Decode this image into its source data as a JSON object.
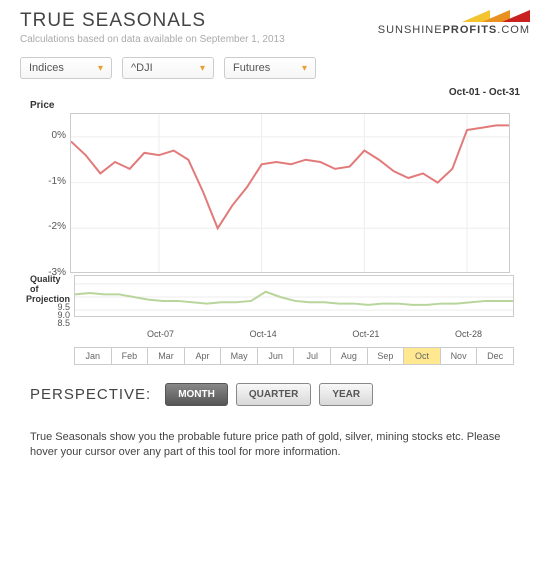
{
  "header": {
    "title": "TRUE SEASONALS",
    "subtitle": "Calculations based on data available on September 1, 2013",
    "logo_text": "SUNSHINE",
    "logo_bold": "PROFITS",
    "logo_suffix": ".COM",
    "logo_colors": [
      "#f4c430",
      "#e89020",
      "#c92020"
    ]
  },
  "selectors": [
    {
      "label": "Indices"
    },
    {
      "label": "^DJI"
    },
    {
      "label": "Futures"
    }
  ],
  "date_range": "Oct-01 - Oct-31",
  "price_chart": {
    "type": "line",
    "ylabel": "Price",
    "ylim": [
      -3,
      0.5
    ],
    "yticks": [
      0,
      -1,
      -2,
      -3
    ],
    "ytick_labels": [
      "0%",
      "-1%",
      "-2%",
      "-3%"
    ],
    "line_color": "#e27a7a",
    "line_width": 2,
    "grid_color": "#eeeeee",
    "border_color": "#cccccc",
    "background_color": "#ffffff",
    "x_count": 31,
    "values": [
      -0.1,
      -0.4,
      -0.8,
      -0.55,
      -0.7,
      -0.35,
      -0.4,
      -0.3,
      -0.5,
      -1.2,
      -2.0,
      -1.5,
      -1.1,
      -0.6,
      -0.55,
      -0.6,
      -0.5,
      -0.55,
      -0.7,
      -0.65,
      -0.3,
      -0.5,
      -0.75,
      -0.9,
      -0.8,
      -1.0,
      -0.7,
      0.15,
      0.2,
      0.25,
      0.25
    ]
  },
  "qop_chart": {
    "type": "line",
    "ylabel_line1": "Quality of",
    "ylabel_line2": "Projection",
    "ylim": [
      8.2,
      9.8
    ],
    "yticks": [
      9.5,
      9.0,
      8.5
    ],
    "ytick_labels": [
      "9.5",
      "9.0",
      "8.5"
    ],
    "line_color": "#b8d69c",
    "line_width": 2,
    "grid_color": "#eeeeee",
    "border_color": "#cccccc",
    "x_count": 31,
    "values": [
      9.1,
      9.15,
      9.1,
      9.1,
      9.0,
      8.9,
      8.85,
      8.85,
      8.8,
      8.75,
      8.8,
      8.8,
      8.85,
      9.2,
      9.0,
      8.85,
      8.8,
      8.8,
      8.75,
      8.75,
      8.7,
      8.75,
      8.75,
      8.7,
      8.7,
      8.75,
      8.75,
      8.8,
      8.85,
      8.85,
      8.85
    ]
  },
  "xaxis": {
    "ticks": [
      "Oct-07",
      "Oct-14",
      "Oct-21",
      "Oct-28"
    ],
    "tick_positions": [
      7,
      14,
      21,
      28
    ]
  },
  "months": {
    "labels": [
      "Jan",
      "Feb",
      "Mar",
      "Apr",
      "May",
      "Jun",
      "Jul",
      "Aug",
      "Sep",
      "Oct",
      "Nov",
      "Dec"
    ],
    "selected_index": 9,
    "selected_bg": "#ffe890"
  },
  "perspective": {
    "label": "PERSPECTIVE:",
    "buttons": [
      "MONTH",
      "QUARTER",
      "YEAR"
    ],
    "active_index": 0
  },
  "description": "True Seasonals show you the probable future price path of gold, silver, mining stocks etc. Please hover your cursor over any part of this tool for more information."
}
